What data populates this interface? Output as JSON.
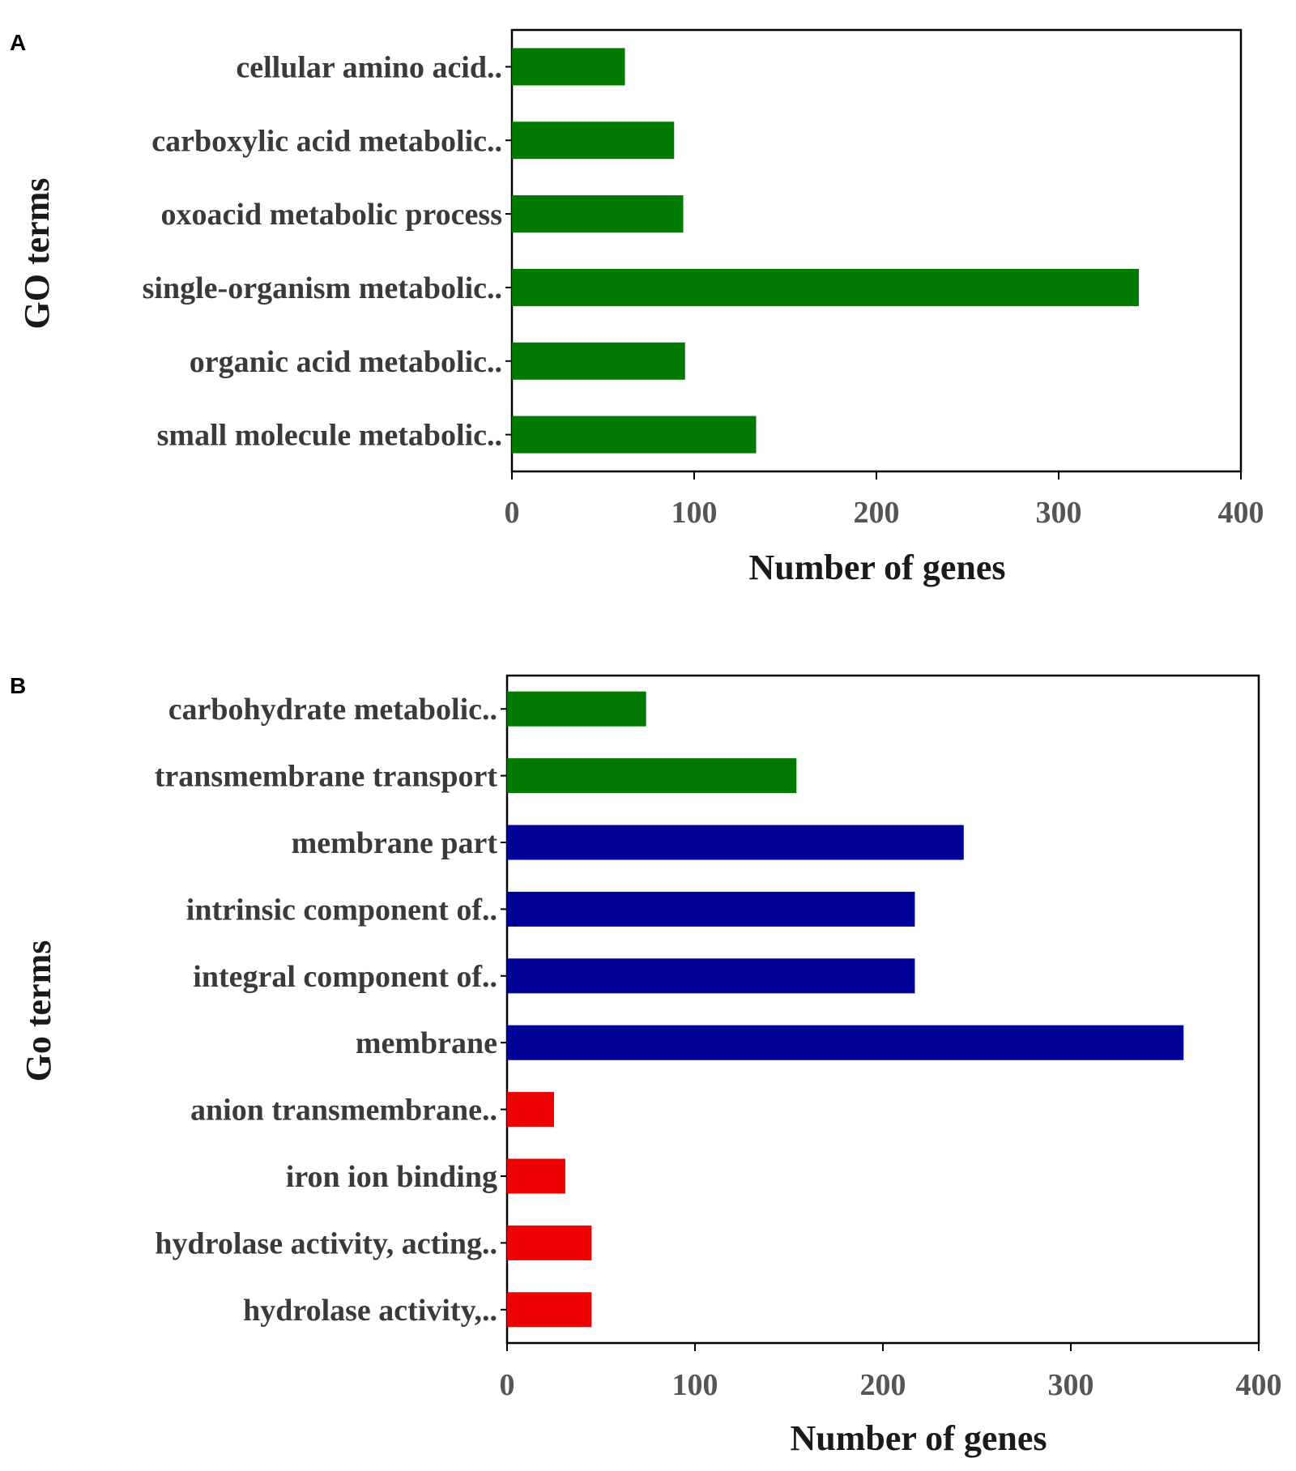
{
  "chart_data": [
    {
      "type": "bar",
      "orientation": "horizontal",
      "panel": "A",
      "categories": [
        "cellular amino acid..",
        "carboxylic acid metabolic..",
        "oxoacid metabolic process",
        "single-organism metabolic..",
        "organic acid metabolic..",
        "small molecule metabolic.."
      ],
      "values": [
        62,
        89,
        94,
        344,
        95,
        134
      ],
      "colors": [
        "#007a00",
        "#007a00",
        "#007a00",
        "#007a00",
        "#007a00",
        "#007a00"
      ],
      "xlabel": "Number of genes",
      "ylabel": "GO terms",
      "xlim": [
        0,
        400
      ],
      "xticks": [
        0,
        100,
        200,
        300,
        400
      ],
      "grid": false,
      "legend": "none"
    },
    {
      "type": "bar",
      "orientation": "horizontal",
      "panel": "B",
      "categories": [
        "carbohydrate metabolic..",
        "transmembrane transport",
        "membrane part",
        "intrinsic component of..",
        "integral component of..",
        "membrane",
        "anion transmembrane..",
        "iron ion binding",
        "hydrolase activity, acting..",
        "hydrolase activity,.."
      ],
      "values": [
        74,
        154,
        243,
        217,
        217,
        360,
        25,
        31,
        45,
        45
      ],
      "colors": [
        "#007a00",
        "#007a00",
        "#000099",
        "#000099",
        "#000099",
        "#000099",
        "#ee0000",
        "#ee0000",
        "#ee0000",
        "#ee0000"
      ],
      "xlabel": "Number of genes",
      "ylabel": "Go terms",
      "xlim": [
        0,
        400
      ],
      "xticks": [
        0,
        100,
        200,
        300,
        400
      ],
      "grid": false,
      "legend": "none"
    }
  ]
}
